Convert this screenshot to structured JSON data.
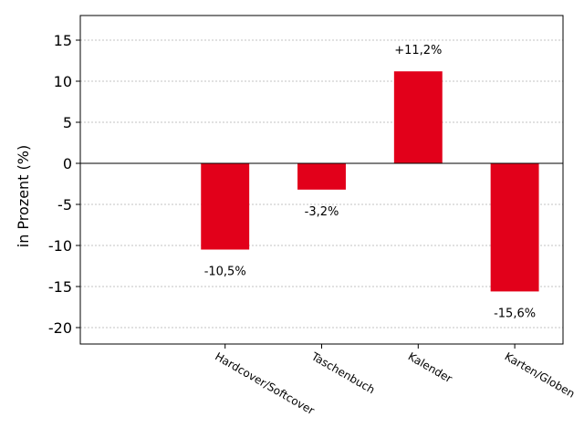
{
  "chart_data": {
    "type": "bar",
    "categories": [
      "Hardcover/Softcover",
      "Taschenbuch",
      "Kalender",
      "Karten/Globen"
    ],
    "values": [
      -10.5,
      -3.2,
      11.2,
      -15.6
    ],
    "data_labels": [
      "-10,5%",
      "-3,2%",
      "+11,2%",
      "-15,6%"
    ],
    "title": "",
    "xlabel": "",
    "ylabel": "in Prozent (%)",
    "ylim": [
      -22,
      18
    ],
    "xlim": [
      -0.5,
      4.5
    ],
    "yticks": [
      15,
      10,
      5,
      0,
      -5,
      -10,
      -15,
      -20
    ],
    "ytick_labels": [
      "15",
      "10",
      "5",
      "0",
      "-5",
      "-10",
      "-15",
      "-20"
    ],
    "grid": true,
    "bar_color": "#e2001a",
    "category_label_rotation": -30
  }
}
